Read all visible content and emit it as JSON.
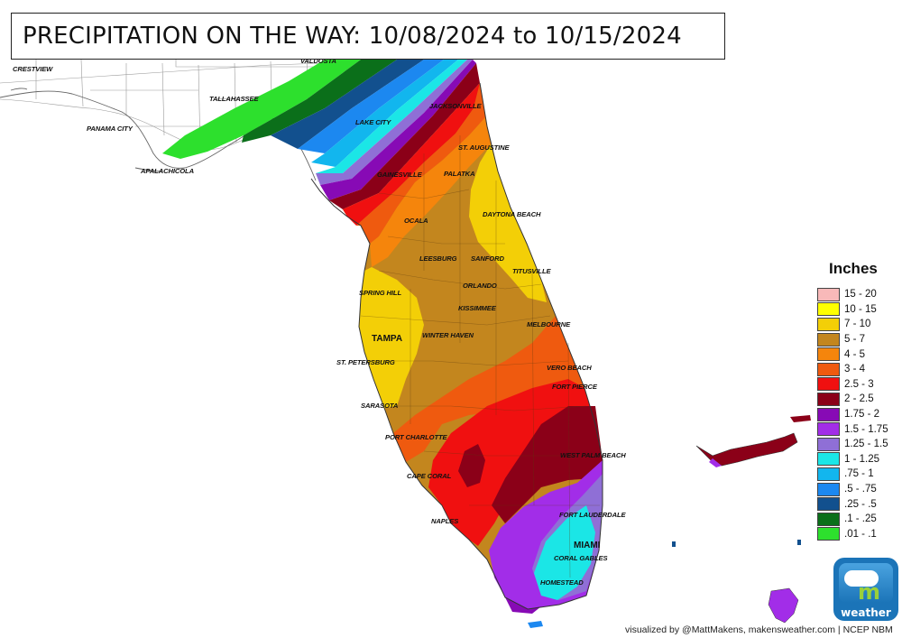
{
  "title": "PRECIPITATION ON THE WAY: 10/08/2024 to 10/15/2024",
  "legend": {
    "title": "Inches",
    "items": [
      {
        "label": "15 - 20",
        "color": "#f8b9b9"
      },
      {
        "label": "10 - 15",
        "color": "#ffff00"
      },
      {
        "label": "7 - 10",
        "color": "#f3cf07"
      },
      {
        "label": "5 - 7",
        "color": "#c3861e"
      },
      {
        "label": "4 - 5",
        "color": "#f5850c"
      },
      {
        "label": "3 - 4",
        "color": "#ef5a0f"
      },
      {
        "label": "2.5 - 3",
        "color": "#f01010"
      },
      {
        "label": "2 - 2.5",
        "color": "#8b0018"
      },
      {
        "label": "1.75 - 2",
        "color": "#870ab5"
      },
      {
        "label": "1.5 - 1.75",
        "color": "#a22de8"
      },
      {
        "label": "1.25 - 1.5",
        "color": "#8f6fd6"
      },
      {
        "label": "1 - 1.25",
        "color": "#1be6e6"
      },
      {
        "label": ".75 - 1",
        "color": "#12b6ee"
      },
      {
        "label": ".5 - .75",
        "color": "#1c88f0"
      },
      {
        "label": ".25 - .5",
        "color": "#12508e"
      },
      {
        "label": ".1 - .25",
        "color": "#0b6f1a"
      },
      {
        "label": ".01 - .1",
        "color": "#2de02d"
      }
    ]
  },
  "cities": {
    "crestview": "CRESTVIEW",
    "valdosta": "VALDOSTA",
    "tallahassee": "TALLAHASSEE",
    "panama_city": "PANAMA CITY",
    "apalachicola": "APALACHICOLA",
    "lake_city": "LAKE CITY",
    "jacksonville": "JACKSONVILLE",
    "st_augustine": "ST. AUGUSTINE",
    "gainesville": "GAINESVILLE",
    "palatka": "PALATKA",
    "daytona_beach": "DAYTONA BEACH",
    "ocala": "OCALA",
    "leesburg": "LEESBURG",
    "sanford": "SANFORD",
    "titusville": "TITUSVILLE",
    "orlando": "ORLANDO",
    "spring_hill": "SPRING HILL",
    "kissimmee": "KISSIMMEE",
    "melbourne": "MELBOURNE",
    "tampa": "TAMPA",
    "winter_haven": "WINTER HAVEN",
    "st_petersburg": "ST. PETERSBURG",
    "vero_beach": "VERO BEACH",
    "fort_pierce": "FORT PIERCE",
    "sarasota": "SARASOTA",
    "port_charlotte": "PORT CHARLOTTE",
    "west_palm_beach": "WEST PALM BEACH",
    "cape_coral": "CAPE CORAL",
    "naples": "NAPLES",
    "fort_lauderdale": "FORT LAUDERDALE",
    "miami": "MIAMI",
    "coral_gables": "CORAL GABLES",
    "homestead": "HOMESTEAD"
  },
  "logo": {
    "text": "weather",
    "letter": "m"
  },
  "credit": "visualized by @MattMakens, makensweather.com | NCEP NBM"
}
